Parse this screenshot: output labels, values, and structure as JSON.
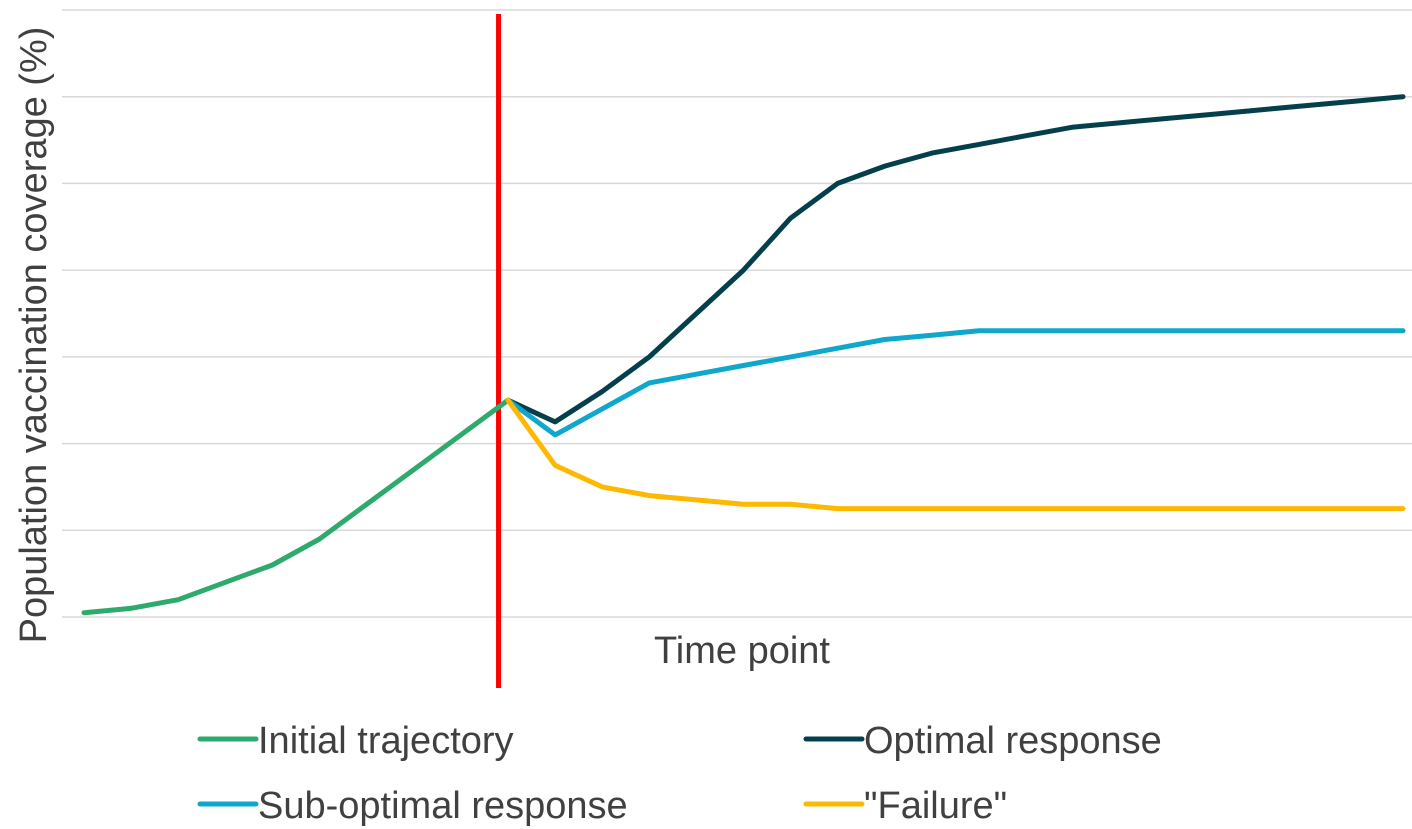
{
  "chart_data": {
    "type": "line",
    "title": "",
    "xlabel": "Time point",
    "ylabel": "Population vaccination coverage (%)",
    "x": [
      1,
      2,
      3,
      4,
      5,
      6,
      7,
      8,
      9,
      10,
      11,
      12,
      13,
      14,
      15,
      16,
      17,
      18,
      19,
      20,
      21,
      22,
      23,
      24,
      25,
      26,
      27,
      28,
      29
    ],
    "ylim": [
      0,
      14
    ],
    "y_gridlines": [
      0,
      2,
      4,
      6,
      8,
      10,
      12,
      14
    ],
    "grid": true,
    "legend_position": "bottom",
    "intervention_marker": {
      "x": 9.8,
      "color": "#ff0000"
    },
    "series": [
      {
        "name": "Initial trajectory",
        "color": "#2eaa6c",
        "values": [
          0.1,
          0.2,
          0.4,
          0.8,
          1.2,
          1.8,
          2.6,
          3.4,
          4.2,
          5.0,
          null,
          null,
          null,
          null,
          null,
          null,
          null,
          null,
          null,
          null,
          null,
          null,
          null,
          null,
          null,
          null,
          null,
          null,
          null
        ]
      },
      {
        "name": "Optimal response",
        "color": "#04404c",
        "values": [
          null,
          null,
          null,
          null,
          null,
          null,
          null,
          null,
          null,
          5.0,
          4.5,
          5.2,
          6.0,
          7.0,
          8.0,
          9.2,
          10.0,
          10.4,
          10.7,
          10.9,
          11.1,
          11.3,
          11.4,
          11.5,
          11.6,
          11.7,
          11.8,
          11.9,
          12.0
        ]
      },
      {
        "name": "Sub-optimal response",
        "color": "#0fa8cc",
        "values": [
          null,
          null,
          null,
          null,
          null,
          null,
          null,
          null,
          null,
          5.0,
          4.2,
          4.8,
          5.4,
          5.6,
          5.8,
          6.0,
          6.2,
          6.4,
          6.5,
          6.6,
          6.6,
          6.6,
          6.6,
          6.6,
          6.6,
          6.6,
          6.6,
          6.6,
          6.6
        ]
      },
      {
        "name": "\"Failure\"",
        "color": "#ffb800",
        "values": [
          null,
          null,
          null,
          null,
          null,
          null,
          null,
          null,
          null,
          5.0,
          3.5,
          3.0,
          2.8,
          2.7,
          2.6,
          2.6,
          2.5,
          2.5,
          2.5,
          2.5,
          2.5,
          2.5,
          2.5,
          2.5,
          2.5,
          2.5,
          2.5,
          2.5,
          2.5
        ]
      }
    ]
  }
}
